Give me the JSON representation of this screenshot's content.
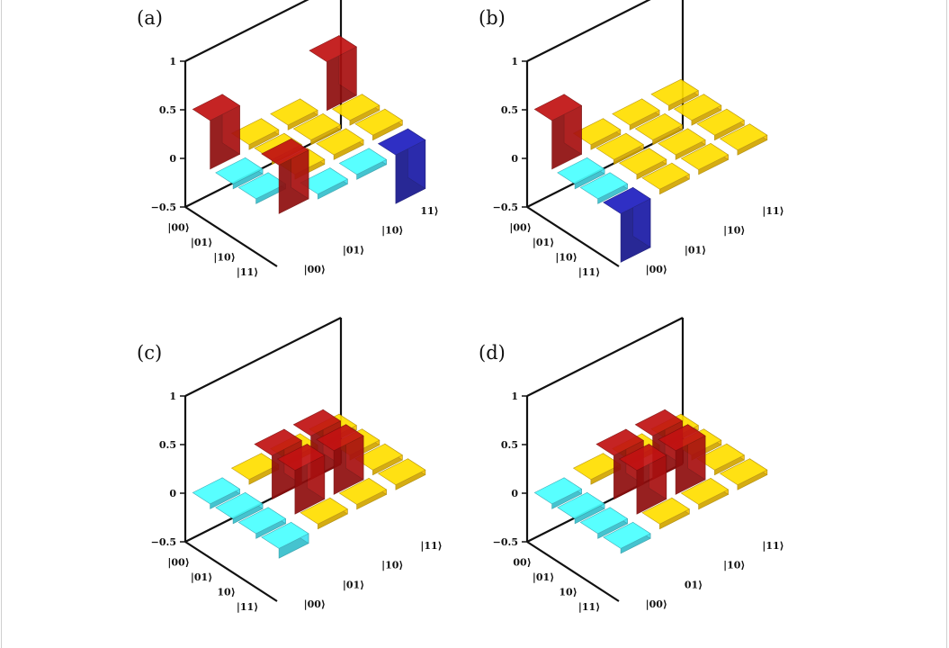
{
  "chart_data": [
    {
      "panel": "(a)",
      "type": "bar3d",
      "row_labels": [
        "|00⟩",
        "|01⟩",
        "|10⟩",
        "|11⟩"
      ],
      "col_labels": [
        "|00⟩",
        "|01⟩",
        "|10⟩",
        "11⟩"
      ],
      "zticks": [
        "−0.5",
        "0",
        "0.5",
        "1"
      ],
      "zlim": [
        -0.5,
        1
      ],
      "values": [
        [
          0.5,
          0.05,
          0.05,
          0.5
        ],
        [
          -0.05,
          0.05,
          0.05,
          0.05
        ],
        [
          -0.05,
          0.05,
          0.05,
          0.05
        ],
        [
          0.5,
          -0.05,
          -0.05,
          -0.5
        ]
      ]
    },
    {
      "panel": "(b)",
      "type": "bar3d",
      "row_labels": [
        "|00⟩",
        "|01⟩",
        "|10⟩",
        "|11⟩"
      ],
      "col_labels": [
        "|00⟩",
        "|01⟩",
        "|10⟩",
        "|11⟩"
      ],
      "zticks": [
        "−0.5",
        "0",
        "0.5",
        "1"
      ],
      "zlim": [
        -0.5,
        1
      ],
      "values": [
        [
          0.5,
          0.05,
          0.05,
          0.05
        ],
        [
          -0.05,
          0.05,
          0.05,
          0.05
        ],
        [
          -0.05,
          0.05,
          0.05,
          0.05
        ],
        [
          -0.5,
          0.05,
          0.05,
          0.05
        ]
      ]
    },
    {
      "panel": "(c)",
      "type": "bar3d",
      "row_labels": [
        "|00⟩",
        "|01⟩",
        "10⟩",
        "|11⟩"
      ],
      "col_labels": [
        "|00⟩",
        "|01⟩",
        "|10⟩",
        "|11⟩"
      ],
      "zticks": [
        "−0.5",
        "0",
        "0.5",
        "1"
      ],
      "zlim": [
        -0.5,
        1
      ],
      "values": [
        [
          -0.05,
          0.05,
          0.05,
          0.05
        ],
        [
          -0.05,
          0.45,
          0.45,
          0.05
        ],
        [
          -0.05,
          0.45,
          0.45,
          0.05
        ],
        [
          -0.1,
          0.05,
          0.05,
          0.05
        ]
      ]
    },
    {
      "panel": "(d)",
      "type": "bar3d",
      "row_labels": [
        "00⟩",
        "|01⟩",
        "10⟩",
        "|11⟩"
      ],
      "col_labels": [
        "|00⟩",
        "01⟩",
        "|10⟩",
        "|11⟩"
      ],
      "zticks": [
        "−0.5",
        "0",
        "0.5",
        "1"
      ],
      "zlim": [
        -0.5,
        1
      ],
      "values": [
        [
          -0.05,
          0.05,
          0.05,
          0.05
        ],
        [
          -0.05,
          0.45,
          0.45,
          0.05
        ],
        [
          -0.05,
          0.45,
          0.45,
          0.05
        ],
        [
          -0.05,
          0.05,
          0.05,
          0.05
        ]
      ]
    }
  ],
  "colors": {
    "neg_strong": "#1a1aa6",
    "neg_weak": "#40e0f0",
    "pos_weak": "#f7c200",
    "pos_strong": "#a81010",
    "axis": "#111111"
  }
}
